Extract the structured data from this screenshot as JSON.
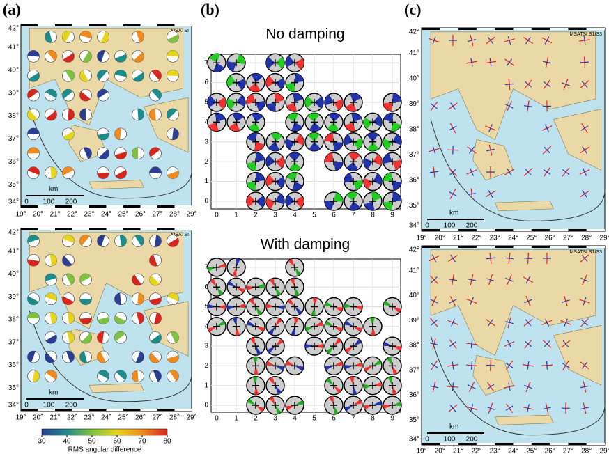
{
  "panel_labels": [
    "(a)",
    "(b)",
    "(c)"
  ],
  "map": {
    "lon_labels": [
      "19°",
      "20°",
      "21°",
      "22°",
      "23°",
      "24°",
      "25°",
      "26°",
      "27°",
      "28°",
      "29°"
    ],
    "lat_labels": [
      "34°",
      "35°",
      "36°",
      "37°",
      "38°",
      "39°",
      "40°",
      "41°",
      "42°"
    ],
    "tag_a": "MSATSI",
    "tag_c": "MSATSI S1/S3",
    "scale_unit": "km",
    "scale_ticks": [
      "0",
      "100",
      "200"
    ]
  },
  "grid_plots": {
    "titles": [
      "No damping",
      "With damping"
    ],
    "x_ticks": [
      0,
      1,
      2,
      3,
      4,
      5,
      6,
      7,
      8,
      9
    ],
    "y_ticks": [
      0,
      1,
      2,
      3,
      4,
      5,
      6,
      7
    ]
  },
  "colorbar": {
    "ticks": [
      30,
      40,
      50,
      60,
      70,
      80
    ],
    "label": "RMS angular difference"
  }
}
